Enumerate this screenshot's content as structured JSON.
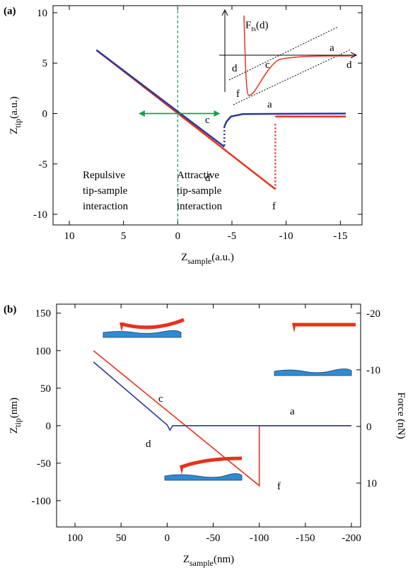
{
  "chart_data": [
    {
      "type": "line",
      "panel_label": "(a)",
      "xlabel": {
        "main": "Z",
        "sub": "sample",
        "unit": "(a.u.)"
      },
      "ylabel": {
        "main": "Z",
        "sub": "tip",
        "unit": "(a.u.)"
      },
      "xlim": [
        11.5,
        -17
      ],
      "xticks": [
        10,
        5,
        0,
        -5,
        -10,
        -15
      ],
      "ylim": [
        -11.05,
        10.7
      ],
      "yticks": [
        10,
        5,
        0,
        -5,
        -10
      ],
      "vline": {
        "x": 0,
        "color": "#1a9e50"
      },
      "series": [
        {
          "color": "#e8321e",
          "style": "solid",
          "x": [
            7.5,
            -9
          ],
          "values": [
            6.3,
            -7.5
          ]
        },
        {
          "color": "#e8321e",
          "style": "dotted",
          "x": [
            -9,
            -9
          ],
          "values": [
            -7.5,
            -1
          ]
        },
        {
          "color": "#e8321e",
          "style": "solid",
          "x": [
            -9,
            -15.5
          ],
          "values": [
            -0.3,
            -0.3
          ]
        },
        {
          "color": "#2b3a9b",
          "style": "solid",
          "x": [
            -15.5,
            -6,
            -4.9,
            -4.5,
            -4.3
          ],
          "values": [
            0,
            -0.05,
            -0.3,
            -0.8,
            -1.3
          ]
        },
        {
          "color": "#2b3a9b",
          "style": "dotted",
          "x": [
            -4.3,
            -4.3
          ],
          "values": [
            -1.3,
            -3.3
          ]
        },
        {
          "color": "#2b3a9b",
          "style": "solid",
          "x": [
            -4.3,
            7.5
          ],
          "values": [
            -3.3,
            6.3
          ]
        },
        {
          "color": "#1a9e50",
          "style": "double-arrow",
          "x": [
            3.5,
            -3.8
          ],
          "values": [
            0,
            0
          ]
        }
      ],
      "annotations": [
        {
          "text": "a",
          "color": "#000000"
        },
        {
          "text": "c",
          "color": "#000000"
        },
        {
          "text": "d",
          "color": "#000000"
        },
        {
          "text": "f",
          "color": "#000000"
        },
        {
          "text": "Repulsive",
          "color": "#1a9e50"
        },
        {
          "text": "tip-sample",
          "color": "#1a9e50"
        },
        {
          "text": "interaction",
          "color": "#1a9e50"
        },
        {
          "text": "Attractive",
          "color": "#1a9e50"
        },
        {
          "text": "tip-sample",
          "color": "#1a9e50"
        },
        {
          "text": "interaction",
          "color": "#1a9e50"
        }
      ],
      "inset": {
        "labels": [
          "F",
          "ts",
          "(d)",
          "a",
          "c",
          "d",
          "d",
          "f"
        ]
      }
    },
    {
      "type": "line",
      "panel_label": "(b)",
      "xlabel": {
        "main": "Z",
        "sub": "sample",
        "unit": "(nm)"
      },
      "ylabel": {
        "main": "Z",
        "sub": "tip",
        "unit": "(nm)"
      },
      "y2label": "Force (nN)",
      "xlim": [
        120,
        -210
      ],
      "xticks": [
        100,
        50,
        0,
        -50,
        -100,
        -150,
        -200
      ],
      "ylim": [
        -135,
        162
      ],
      "yticks": [
        150,
        100,
        50,
        0,
        -50,
        -100
      ],
      "y2lim": [
        17.75,
        -21.6
      ],
      "y2ticks": [
        -20,
        -10,
        0,
        10
      ],
      "series": [
        {
          "color": "#e8321e",
          "style": "solid",
          "x": [
            80,
            -100,
            -100,
            -200
          ],
          "values": [
            100,
            -80,
            0,
            0
          ]
        },
        {
          "color": "#2b3a9b",
          "style": "solid",
          "x": [
            80,
            0,
            -3,
            -6,
            -200
          ],
          "values": [
            85,
            1,
            -6,
            0,
            0
          ]
        }
      ],
      "annotations": [
        {
          "text": "c",
          "color": "#000000"
        },
        {
          "text": "d",
          "color": "#000000"
        },
        {
          "text": "a",
          "color": "#000000"
        },
        {
          "text": "f",
          "color": "#000000"
        }
      ]
    }
  ]
}
